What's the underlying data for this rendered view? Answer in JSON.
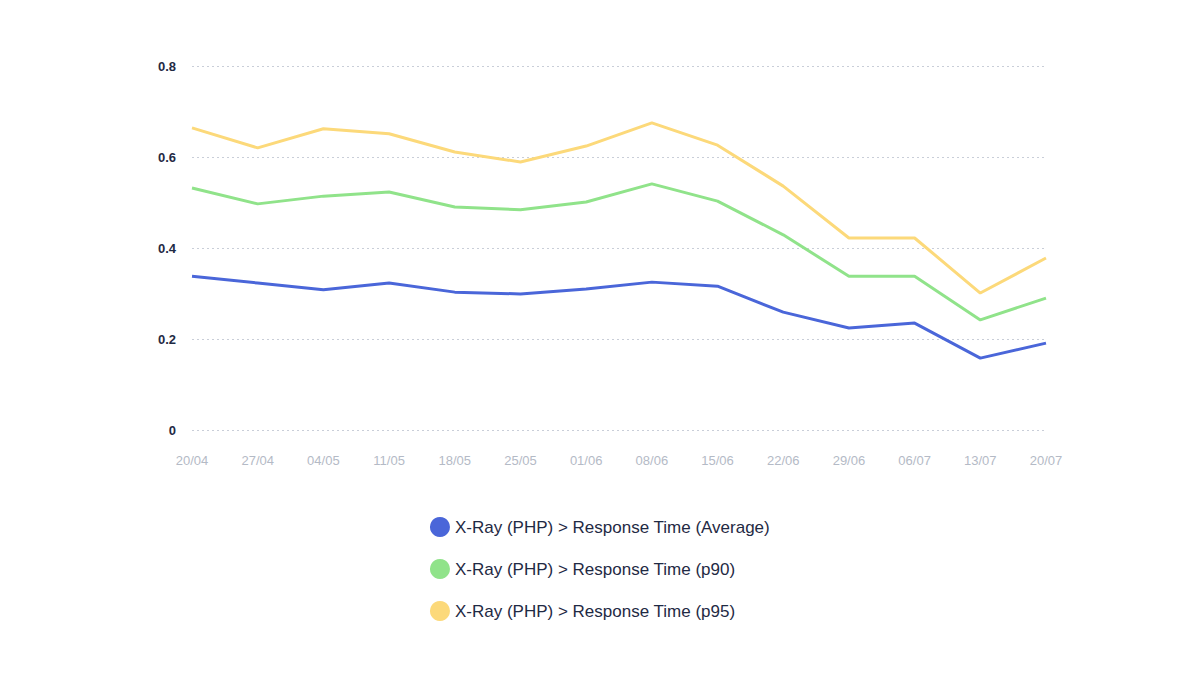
{
  "chart_data": {
    "type": "line",
    "categories": [
      "20/04",
      "27/04",
      "04/05",
      "11/05",
      "18/05",
      "25/05",
      "01/06",
      "08/06",
      "15/06",
      "22/06",
      "29/06",
      "06/07",
      "13/07",
      "20/07"
    ],
    "series": [
      {
        "name": "X-Ray (PHP) > Response Time (Average)",
        "color": "#4a66d9",
        "values": [
          0.338,
          0.323,
          0.308,
          0.323,
          0.303,
          0.299,
          0.31,
          0.325,
          0.316,
          0.259,
          0.224,
          0.235,
          0.158,
          0.191
        ]
      },
      {
        "name": "X-Ray (PHP) > Response Time (p90)",
        "color": "#90e38a",
        "values": [
          0.532,
          0.497,
          0.514,
          0.523,
          0.49,
          0.484,
          0.501,
          0.541,
          0.503,
          0.429,
          0.338,
          0.338,
          0.242,
          0.29
        ]
      },
      {
        "name": "X-Ray (PHP) > Response Time (p95)",
        "color": "#fcd97a",
        "values": [
          0.664,
          0.62,
          0.662,
          0.651,
          0.611,
          0.589,
          0.624,
          0.675,
          0.626,
          0.536,
          0.422,
          0.422,
          0.301,
          0.378
        ]
      }
    ],
    "ylim": [
      0,
      0.8
    ],
    "yticks": [
      0,
      0.2,
      0.4,
      0.6,
      0.8
    ],
    "grid": true,
    "legend": "bottom"
  }
}
